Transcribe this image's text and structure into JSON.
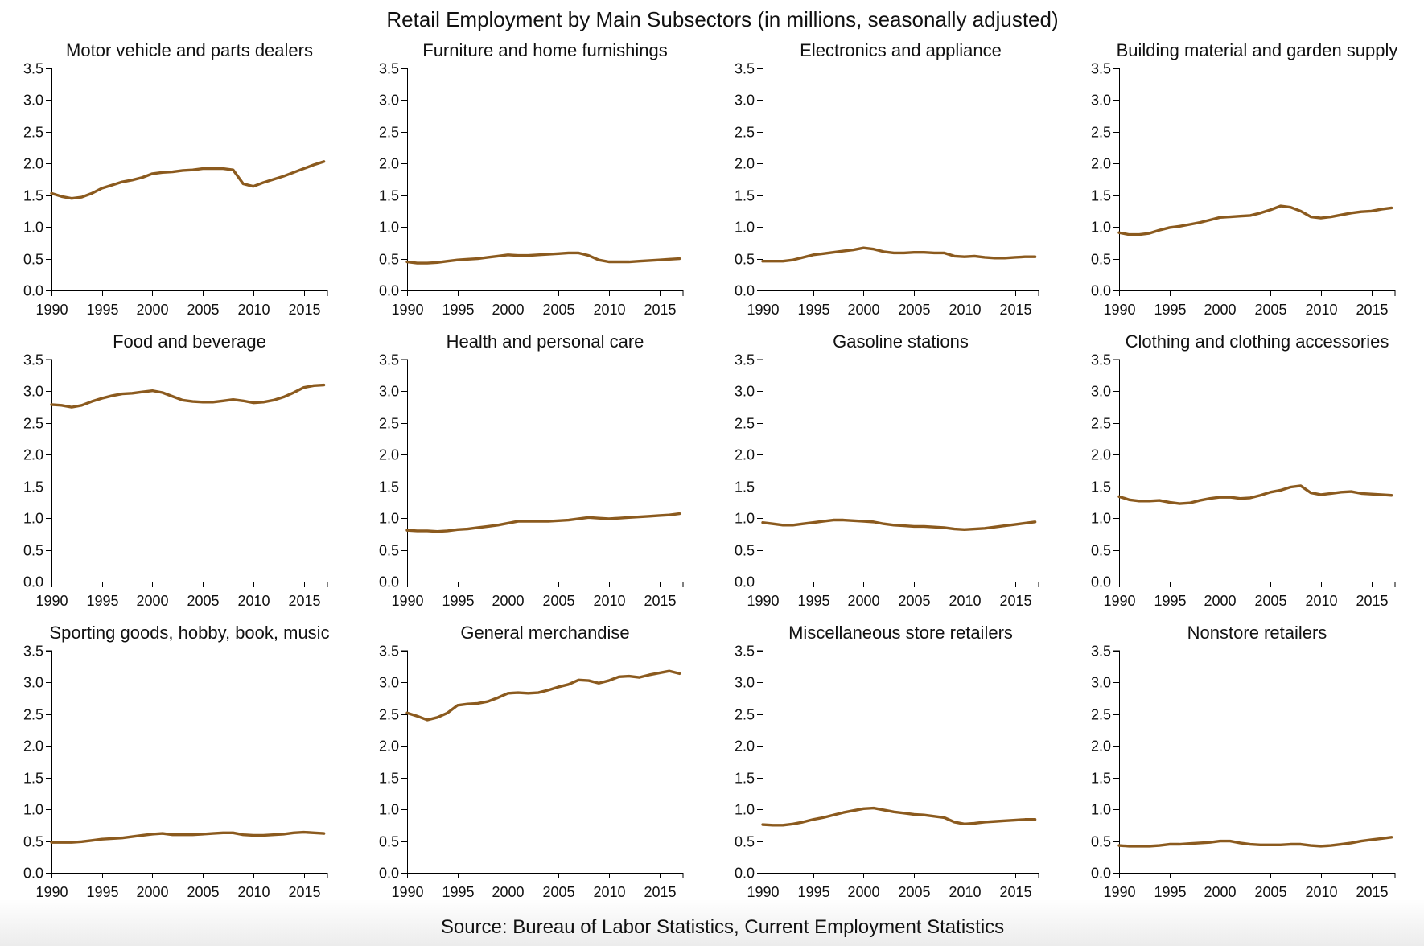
{
  "title": "Retail Employment by Main Subsectors (in millions, seasonally adjusted)",
  "source": "Source: Bureau of Labor Statistics, Current Employment Statistics",
  "line_color": "#8b5a1e",
  "chart_data": [
    {
      "type": "line",
      "title": "Motor vehicle and parts dealers",
      "x": [
        1990,
        1991,
        1992,
        1993,
        1994,
        1995,
        1996,
        1997,
        1998,
        1999,
        2000,
        2001,
        2002,
        2003,
        2004,
        2005,
        2006,
        2007,
        2008,
        2009,
        2010,
        2011,
        2012,
        2013,
        2014,
        2015,
        2016,
        2017
      ],
      "y": [
        1.53,
        1.48,
        1.45,
        1.47,
        1.53,
        1.61,
        1.66,
        1.71,
        1.74,
        1.78,
        1.84,
        1.86,
        1.87,
        1.89,
        1.9,
        1.92,
        1.92,
        1.92,
        1.9,
        1.68,
        1.64,
        1.7,
        1.75,
        1.8,
        1.86,
        1.92,
        1.98,
        2.03
      ],
      "xlim": [
        1990,
        2017.35
      ],
      "ylim": [
        0,
        3.5
      ],
      "xticks": [
        "1990",
        "1995",
        "2000",
        "2005",
        "2010",
        "2015"
      ],
      "yticks": [
        "0.0",
        "0.5",
        "1.0",
        "1.5",
        "2.0",
        "2.5",
        "3.0",
        "3.5"
      ],
      "grid": false
    },
    {
      "type": "line",
      "title": "Furniture and home furnishings",
      "x": [
        1990,
        1991,
        1992,
        1993,
        1994,
        1995,
        1996,
        1997,
        1998,
        1999,
        2000,
        2001,
        2002,
        2003,
        2004,
        2005,
        2006,
        2007,
        2008,
        2009,
        2010,
        2011,
        2012,
        2013,
        2014,
        2015,
        2016,
        2017
      ],
      "y": [
        0.45,
        0.43,
        0.43,
        0.44,
        0.46,
        0.48,
        0.49,
        0.5,
        0.52,
        0.54,
        0.56,
        0.55,
        0.55,
        0.56,
        0.57,
        0.58,
        0.59,
        0.59,
        0.55,
        0.48,
        0.45,
        0.45,
        0.45,
        0.46,
        0.47,
        0.48,
        0.49,
        0.5
      ],
      "xlim": [
        1990,
        2017.35
      ],
      "ylim": [
        0,
        3.5
      ],
      "xticks": [
        "1990",
        "1995",
        "2000",
        "2005",
        "2010",
        "2015"
      ],
      "yticks": [
        "0.0",
        "0.5",
        "1.0",
        "1.5",
        "2.0",
        "2.5",
        "3.0",
        "3.5"
      ],
      "grid": false
    },
    {
      "type": "line",
      "title": "Electronics and appliance",
      "x": [
        1990,
        1991,
        1992,
        1993,
        1994,
        1995,
        1996,
        1997,
        1998,
        1999,
        2000,
        2001,
        2002,
        2003,
        2004,
        2005,
        2006,
        2007,
        2008,
        2009,
        2010,
        2011,
        2012,
        2013,
        2014,
        2015,
        2016,
        2017
      ],
      "y": [
        0.46,
        0.46,
        0.46,
        0.48,
        0.52,
        0.56,
        0.58,
        0.6,
        0.62,
        0.64,
        0.67,
        0.65,
        0.61,
        0.59,
        0.59,
        0.6,
        0.6,
        0.59,
        0.59,
        0.54,
        0.53,
        0.54,
        0.52,
        0.51,
        0.51,
        0.52,
        0.53,
        0.53
      ],
      "xlim": [
        1990,
        2017.35
      ],
      "ylim": [
        0,
        3.5
      ],
      "xticks": [
        "1990",
        "1995",
        "2000",
        "2005",
        "2010",
        "2015"
      ],
      "yticks": [
        "0.0",
        "0.5",
        "1.0",
        "1.5",
        "2.0",
        "2.5",
        "3.0",
        "3.5"
      ],
      "grid": false
    },
    {
      "type": "line",
      "title": "Building material and garden supply",
      "x": [
        1990,
        1991,
        1992,
        1993,
        1994,
        1995,
        1996,
        1997,
        1998,
        1999,
        2000,
        2001,
        2002,
        2003,
        2004,
        2005,
        2006,
        2007,
        2008,
        2009,
        2010,
        2011,
        2012,
        2013,
        2014,
        2015,
        2016,
        2017
      ],
      "y": [
        0.91,
        0.88,
        0.88,
        0.9,
        0.95,
        0.99,
        1.01,
        1.04,
        1.07,
        1.11,
        1.15,
        1.16,
        1.17,
        1.18,
        1.22,
        1.27,
        1.33,
        1.31,
        1.25,
        1.16,
        1.14,
        1.16,
        1.19,
        1.22,
        1.24,
        1.25,
        1.28,
        1.3
      ],
      "xlim": [
        1990,
        2017.35
      ],
      "ylim": [
        0,
        3.5
      ],
      "xticks": [
        "1990",
        "1995",
        "2000",
        "2005",
        "2010",
        "2015"
      ],
      "yticks": [
        "0.0",
        "0.5",
        "1.0",
        "1.5",
        "2.0",
        "2.5",
        "3.0",
        "3.5"
      ],
      "grid": false
    },
    {
      "type": "line",
      "title": "Food and beverage",
      "x": [
        1990,
        1991,
        1992,
        1993,
        1994,
        1995,
        1996,
        1997,
        1998,
        1999,
        2000,
        2001,
        2002,
        2003,
        2004,
        2005,
        2006,
        2007,
        2008,
        2009,
        2010,
        2011,
        2012,
        2013,
        2014,
        2015,
        2016,
        2017
      ],
      "y": [
        2.79,
        2.78,
        2.75,
        2.78,
        2.84,
        2.89,
        2.93,
        2.96,
        2.97,
        2.99,
        3.01,
        2.98,
        2.92,
        2.86,
        2.84,
        2.83,
        2.83,
        2.85,
        2.87,
        2.85,
        2.82,
        2.83,
        2.86,
        2.91,
        2.98,
        3.06,
        3.09,
        3.1
      ],
      "xlim": [
        1990,
        2017.35
      ],
      "ylim": [
        0,
        3.5
      ],
      "xticks": [
        "1990",
        "1995",
        "2000",
        "2005",
        "2010",
        "2015"
      ],
      "yticks": [
        "0.0",
        "0.5",
        "1.0",
        "1.5",
        "2.0",
        "2.5",
        "3.0",
        "3.5"
      ],
      "grid": false
    },
    {
      "type": "line",
      "title": "Health and personal care",
      "x": [
        1990,
        1991,
        1992,
        1993,
        1994,
        1995,
        1996,
        1997,
        1998,
        1999,
        2000,
        2001,
        2002,
        2003,
        2004,
        2005,
        2006,
        2007,
        2008,
        2009,
        2010,
        2011,
        2012,
        2013,
        2014,
        2015,
        2016,
        2017
      ],
      "y": [
        0.81,
        0.8,
        0.8,
        0.79,
        0.8,
        0.82,
        0.83,
        0.85,
        0.87,
        0.89,
        0.92,
        0.95,
        0.95,
        0.95,
        0.95,
        0.96,
        0.97,
        0.99,
        1.01,
        1.0,
        0.99,
        1.0,
        1.01,
        1.02,
        1.03,
        1.04,
        1.05,
        1.07
      ],
      "xlim": [
        1990,
        2017.35
      ],
      "ylim": [
        0,
        3.5
      ],
      "xticks": [
        "1990",
        "1995",
        "2000",
        "2005",
        "2010",
        "2015"
      ],
      "yticks": [
        "0.0",
        "0.5",
        "1.0",
        "1.5",
        "2.0",
        "2.5",
        "3.0",
        "3.5"
      ],
      "grid": false
    },
    {
      "type": "line",
      "title": "Gasoline stations",
      "x": [
        1990,
        1991,
        1992,
        1993,
        1994,
        1995,
        1996,
        1997,
        1998,
        1999,
        2000,
        2001,
        2002,
        2003,
        2004,
        2005,
        2006,
        2007,
        2008,
        2009,
        2010,
        2011,
        2012,
        2013,
        2014,
        2015,
        2016,
        2017
      ],
      "y": [
        0.93,
        0.91,
        0.89,
        0.89,
        0.91,
        0.93,
        0.95,
        0.97,
        0.97,
        0.96,
        0.95,
        0.94,
        0.91,
        0.89,
        0.88,
        0.87,
        0.87,
        0.86,
        0.85,
        0.83,
        0.82,
        0.83,
        0.84,
        0.86,
        0.88,
        0.9,
        0.92,
        0.94
      ],
      "xlim": [
        1990,
        2017.35
      ],
      "ylim": [
        0,
        3.5
      ],
      "xticks": [
        "1990",
        "1995",
        "2000",
        "2005",
        "2010",
        "2015"
      ],
      "yticks": [
        "0.0",
        "0.5",
        "1.0",
        "1.5",
        "2.0",
        "2.5",
        "3.0",
        "3.5"
      ],
      "grid": false
    },
    {
      "type": "line",
      "title": "Clothing and clothing accessories",
      "x": [
        1990,
        1991,
        1992,
        1993,
        1994,
        1995,
        1996,
        1997,
        1998,
        1999,
        2000,
        2001,
        2002,
        2003,
        2004,
        2005,
        2006,
        2007,
        2008,
        2009,
        2010,
        2011,
        2012,
        2013,
        2014,
        2015,
        2016,
        2017
      ],
      "y": [
        1.34,
        1.29,
        1.27,
        1.27,
        1.28,
        1.25,
        1.23,
        1.24,
        1.28,
        1.31,
        1.33,
        1.33,
        1.31,
        1.32,
        1.36,
        1.41,
        1.44,
        1.49,
        1.51,
        1.4,
        1.37,
        1.39,
        1.41,
        1.42,
        1.39,
        1.38,
        1.37,
        1.36
      ],
      "xlim": [
        1990,
        2017.35
      ],
      "ylim": [
        0,
        3.5
      ],
      "xticks": [
        "1990",
        "1995",
        "2000",
        "2005",
        "2010",
        "2015"
      ],
      "yticks": [
        "0.0",
        "0.5",
        "1.0",
        "1.5",
        "2.0",
        "2.5",
        "3.0",
        "3.5"
      ],
      "grid": false
    },
    {
      "type": "line",
      "title": "Sporting goods, hobby, book, music",
      "x": [
        1990,
        1991,
        1992,
        1993,
        1994,
        1995,
        1996,
        1997,
        1998,
        1999,
        2000,
        2001,
        2002,
        2003,
        2004,
        2005,
        2006,
        2007,
        2008,
        2009,
        2010,
        2011,
        2012,
        2013,
        2014,
        2015,
        2016,
        2017
      ],
      "y": [
        0.48,
        0.48,
        0.48,
        0.49,
        0.51,
        0.53,
        0.54,
        0.55,
        0.57,
        0.59,
        0.61,
        0.62,
        0.6,
        0.6,
        0.6,
        0.61,
        0.62,
        0.63,
        0.63,
        0.6,
        0.59,
        0.59,
        0.6,
        0.61,
        0.63,
        0.64,
        0.63,
        0.62
      ],
      "xlim": [
        1990,
        2017.35
      ],
      "ylim": [
        0,
        3.5
      ],
      "xticks": [
        "1990",
        "1995",
        "2000",
        "2005",
        "2010",
        "2015"
      ],
      "yticks": [
        "0.0",
        "0.5",
        "1.0",
        "1.5",
        "2.0",
        "2.5",
        "3.0",
        "3.5"
      ],
      "grid": false
    },
    {
      "type": "line",
      "title": "General merchandise",
      "x": [
        1990,
        1991,
        1992,
        1993,
        1994,
        1995,
        1996,
        1997,
        1998,
        1999,
        2000,
        2001,
        2002,
        2003,
        2004,
        2005,
        2006,
        2007,
        2008,
        2009,
        2010,
        2011,
        2012,
        2013,
        2014,
        2015,
        2016,
        2017
      ],
      "y": [
        2.52,
        2.47,
        2.41,
        2.45,
        2.52,
        2.64,
        2.66,
        2.67,
        2.7,
        2.76,
        2.83,
        2.84,
        2.83,
        2.84,
        2.88,
        2.93,
        2.97,
        3.04,
        3.03,
        2.99,
        3.03,
        3.09,
        3.1,
        3.08,
        3.12,
        3.15,
        3.18,
        3.14
      ],
      "xlim": [
        1990,
        2017.35
      ],
      "ylim": [
        0,
        3.5
      ],
      "xticks": [
        "1990",
        "1995",
        "2000",
        "2005",
        "2010",
        "2015"
      ],
      "yticks": [
        "0.0",
        "0.5",
        "1.0",
        "1.5",
        "2.0",
        "2.5",
        "3.0",
        "3.5"
      ],
      "grid": false
    },
    {
      "type": "line",
      "title": "Miscellaneous store retailers",
      "x": [
        1990,
        1991,
        1992,
        1993,
        1994,
        1995,
        1996,
        1997,
        1998,
        1999,
        2000,
        2001,
        2002,
        2003,
        2004,
        2005,
        2006,
        2007,
        2008,
        2009,
        2010,
        2011,
        2012,
        2013,
        2014,
        2015,
        2016,
        2017
      ],
      "y": [
        0.76,
        0.75,
        0.75,
        0.77,
        0.8,
        0.84,
        0.87,
        0.91,
        0.95,
        0.98,
        1.01,
        1.02,
        0.99,
        0.96,
        0.94,
        0.92,
        0.91,
        0.89,
        0.87,
        0.8,
        0.77,
        0.78,
        0.8,
        0.81,
        0.82,
        0.83,
        0.84,
        0.84
      ],
      "xlim": [
        1990,
        2017.35
      ],
      "ylim": [
        0,
        3.5
      ],
      "xticks": [
        "1990",
        "1995",
        "2000",
        "2005",
        "2010",
        "2015"
      ],
      "yticks": [
        "0.0",
        "0.5",
        "1.0",
        "1.5",
        "2.0",
        "2.5",
        "3.0",
        "3.5"
      ],
      "grid": false
    },
    {
      "type": "line",
      "title": "Nonstore retailers",
      "x": [
        1990,
        1991,
        1992,
        1993,
        1994,
        1995,
        1996,
        1997,
        1998,
        1999,
        2000,
        2001,
        2002,
        2003,
        2004,
        2005,
        2006,
        2007,
        2008,
        2009,
        2010,
        2011,
        2012,
        2013,
        2014,
        2015,
        2016,
        2017
      ],
      "y": [
        0.43,
        0.42,
        0.42,
        0.42,
        0.43,
        0.45,
        0.45,
        0.46,
        0.47,
        0.48,
        0.5,
        0.5,
        0.47,
        0.45,
        0.44,
        0.44,
        0.44,
        0.45,
        0.45,
        0.43,
        0.42,
        0.43,
        0.45,
        0.47,
        0.5,
        0.52,
        0.54,
        0.56
      ],
      "xlim": [
        1990,
        2017.35
      ],
      "ylim": [
        0,
        3.5
      ],
      "xticks": [
        "1990",
        "1995",
        "2000",
        "2005",
        "2010",
        "2015"
      ],
      "yticks": [
        "0.0",
        "0.5",
        "1.0",
        "1.5",
        "2.0",
        "2.5",
        "3.0",
        "3.5"
      ],
      "grid": false
    }
  ]
}
